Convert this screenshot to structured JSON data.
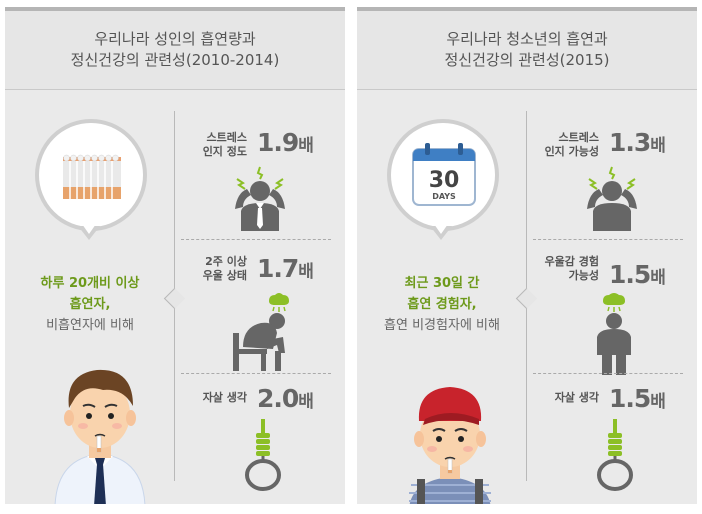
{
  "panels": [
    {
      "title_line1": "우리나라 성인의 흡연량과",
      "title_line2": "정신건강의 관련성(2010-2014)",
      "desc_line1": "하루 20개비 이상",
      "desc_line2": "흡연자,",
      "desc_line3": "비흡연자에 비해",
      "stats": [
        {
          "label_line1": "스트레스",
          "label_line2": "인지 정도",
          "value": "1.9",
          "unit": "배"
        },
        {
          "label_line1": "2주 이상",
          "label_line2": "우울 상태",
          "value": "1.7",
          "unit": "배"
        },
        {
          "label_line1": "",
          "label_line2": "자살 생각",
          "value": "2.0",
          "unit": "배"
        }
      ]
    },
    {
      "title_line1": "우리나라 청소년의 흡연과",
      "title_line2": "정신건강의 관련성(2015)",
      "calendar_number": "30",
      "calendar_label": "DAYS",
      "desc_line1": "최근 30일 간",
      "desc_line2": "흡연 경험자,",
      "desc_line3": "흡연 비경험자에 비해",
      "stats": [
        {
          "label_line1": "스트레스",
          "label_line2": "인지 가능성",
          "value": "1.3",
          "unit": "배"
        },
        {
          "label_line1": "우울감 경험",
          "label_line2": "가능성",
          "value": "1.5",
          "unit": "배"
        },
        {
          "label_line1": "",
          "label_line2": "자살 생각",
          "value": "1.5",
          "unit": "배"
        }
      ]
    }
  ],
  "colors": {
    "accent_green": "#6d9a1b",
    "icon_gray": "#666666",
    "rope_green": "#8cbf26",
    "calendar_blue": "#3f7fc4",
    "cap_red": "#c8232c"
  },
  "icons": [
    "cigarette-pack-icon",
    "calendar-icon",
    "stressed-person-icon",
    "depressed-person-icon",
    "noose-icon",
    "adult-smoker-illustration",
    "teen-smoker-illustration"
  ]
}
